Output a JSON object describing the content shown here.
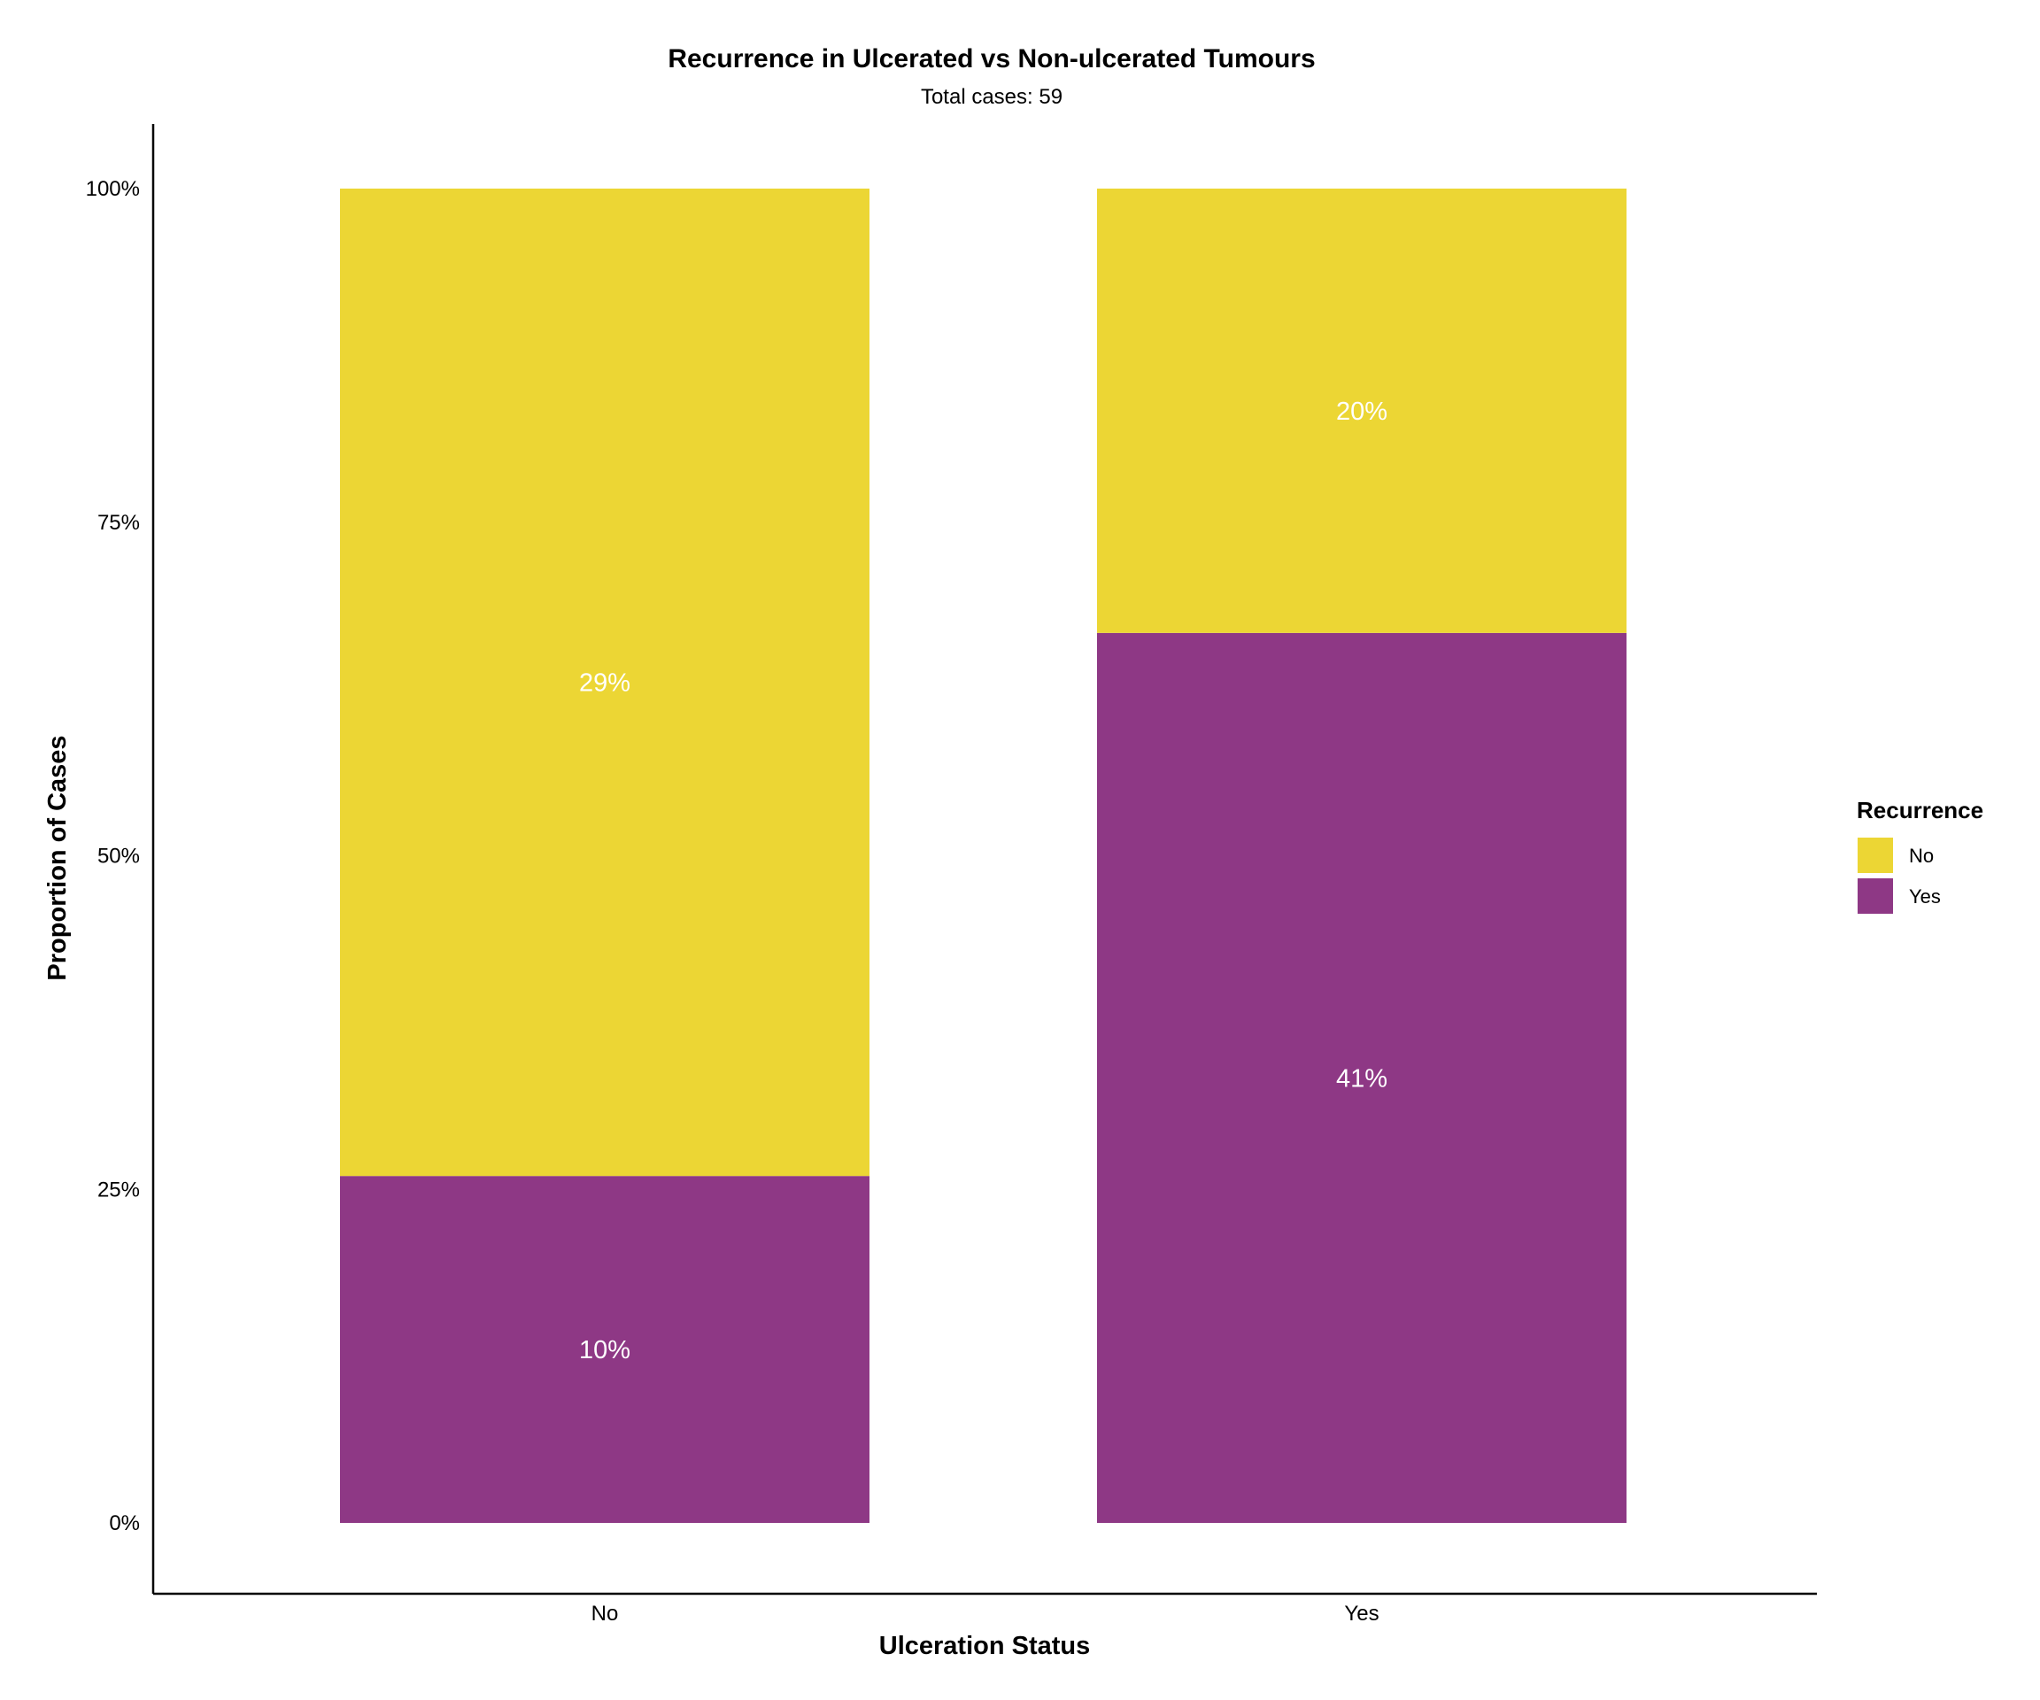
{
  "chart_data": {
    "type": "bar",
    "stacked": true,
    "normalized": true,
    "title": "Recurrence in Ulcerated vs Non-ulcerated Tumours",
    "subtitle": "Total cases: 59",
    "xlabel": "Ulceration Status",
    "ylabel": "Proportion of Cases",
    "categories": [
      "No",
      "Yes"
    ],
    "yticks": [
      "0%",
      "25%",
      "50%",
      "75%",
      "100%"
    ],
    "ylim": [
      0,
      1
    ],
    "grid": false,
    "legend": {
      "title": "Recurrence",
      "position": "right"
    },
    "series": [
      {
        "name": "Yes",
        "color": "#8E3885",
        "values": [
          0.26,
          0.667
        ],
        "labels": [
          "10%",
          "41%"
        ]
      },
      {
        "name": "No",
        "color": "#ECD634",
        "values": [
          0.74,
          0.333
        ],
        "labels": [
          "29%",
          "20%"
        ]
      }
    ],
    "legend_order": [
      "No",
      "Yes"
    ]
  }
}
